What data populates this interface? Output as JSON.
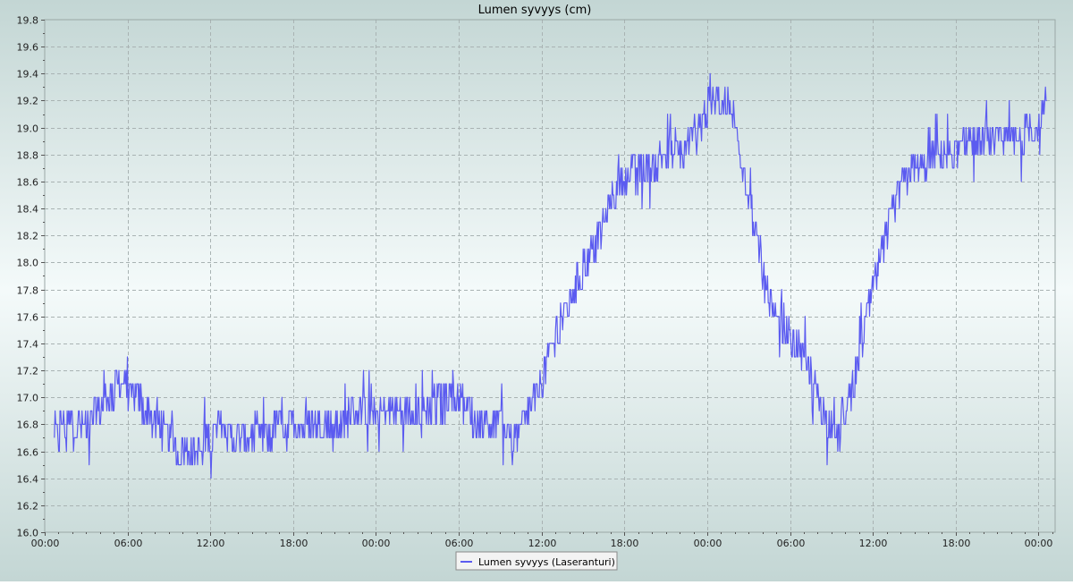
{
  "chart_data": {
    "type": "line",
    "title": "Lumen syvyys (cm)",
    "xlabel": "",
    "ylabel": "",
    "ylim": [
      16.0,
      19.8
    ],
    "y_ticks": [
      "16.0",
      "16.2",
      "16.4",
      "16.6",
      "16.8",
      "17.0",
      "17.2",
      "17.4",
      "17.6",
      "17.8",
      "18.0",
      "18.2",
      "18.4",
      "18.6",
      "18.8",
      "19.0",
      "19.2",
      "19.4",
      "19.6",
      "19.8"
    ],
    "x_ticks": [
      "00:00",
      "06:00",
      "12:00",
      "18:00",
      "00:00",
      "06:00",
      "12:00",
      "18:00",
      "00:00",
      "06:00",
      "12:00",
      "18:00",
      "00:00"
    ],
    "x_unit": "hours",
    "xlim": [
      0,
      73.2
    ],
    "grid": true,
    "legend_position": "bottom-center",
    "series": [
      {
        "name": "Lumen syvyys (Laseranturi)",
        "color": "#5b5bf0",
        "x": [
          0.7,
          1.5,
          2.5,
          3.5,
          4.2,
          5.0,
          5.5,
          6.0,
          6.5,
          7.0,
          7.5,
          8.0,
          8.5,
          9.0,
          9.4,
          10.0,
          10.8,
          11.5,
          12.0,
          12.5,
          13.0,
          14.0,
          15.0,
          15.5,
          16.0,
          16.5,
          17.0,
          17.5,
          18.0,
          19.0,
          20.0,
          21.0,
          22.0,
          23.0,
          24.0,
          25.0,
          26.0,
          27.0,
          28.0,
          29.0,
          30.0,
          30.5,
          31.0,
          32.0,
          33.0,
          33.5,
          34.0,
          34.5,
          35.0,
          36.0,
          36.5,
          37.0,
          37.5,
          38.0,
          38.5,
          39.0,
          39.5,
          40.0,
          40.5,
          41.0,
          41.5,
          42.0,
          42.5,
          43.0,
          43.5,
          44.0,
          44.5,
          45.0,
          45.5,
          46.0,
          46.5,
          47.0,
          47.5,
          48.0,
          49.0,
          50.0,
          51.0,
          52.0,
          53.0,
          54.0,
          55.0,
          56.0,
          56.5,
          57.0,
          57.5,
          58.0,
          58.5,
          59.0,
          59.5,
          60.0,
          60.5,
          61.0,
          61.5,
          62.0,
          62.5,
          63.0,
          63.5,
          64.0,
          64.5,
          65.0,
          65.5,
          66.0,
          66.5,
          67.0,
          67.5,
          68.0,
          68.5,
          69.0,
          70.0,
          71.0,
          72.0,
          72.6
        ],
        "y": [
          16.7,
          16.8,
          16.8,
          16.85,
          16.95,
          17.05,
          17.1,
          17.05,
          17.0,
          16.95,
          16.9,
          16.8,
          16.75,
          16.7,
          16.65,
          16.6,
          16.55,
          16.65,
          16.7,
          16.75,
          16.75,
          16.7,
          16.7,
          16.7,
          16.72,
          16.75,
          16.8,
          16.8,
          16.8,
          16.8,
          16.82,
          16.82,
          16.85,
          16.85,
          16.85,
          16.85,
          16.88,
          16.9,
          16.95,
          16.95,
          17.0,
          16.95,
          16.85,
          16.75,
          16.75,
          16.8,
          16.7,
          16.75,
          16.85,
          17.1,
          17.3,
          17.45,
          17.6,
          17.7,
          17.85,
          17.95,
          18.05,
          18.15,
          18.3,
          18.45,
          18.55,
          18.6,
          18.65,
          18.65,
          18.7,
          18.72,
          18.75,
          18.78,
          18.78,
          18.8,
          18.85,
          18.9,
          19.0,
          19.15,
          19.25,
          19.05,
          18.5,
          17.9,
          17.55,
          17.45,
          17.3,
          17.05,
          16.85,
          16.75,
          16.7,
          16.85,
          17.05,
          17.3,
          17.55,
          17.8,
          18.0,
          18.2,
          18.4,
          18.55,
          18.65,
          18.7,
          18.72,
          18.75,
          18.75,
          18.78,
          18.8,
          18.82,
          18.85,
          18.85,
          18.85,
          18.9,
          18.9,
          18.9,
          18.9,
          18.95,
          19.0,
          19.15
        ]
      }
    ]
  }
}
